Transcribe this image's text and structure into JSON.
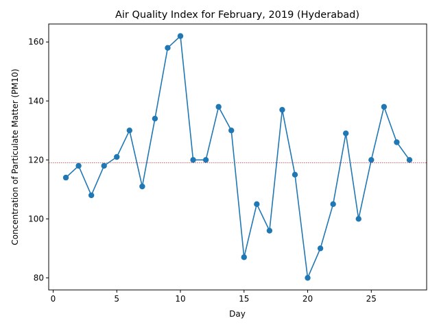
{
  "chart_data": {
    "type": "line",
    "title": "Air Quality Index for February, 2019 (Hyderabad)",
    "xlabel": "Day",
    "ylabel": "Concentration of Particulate Matter (PM10)",
    "xlim": [
      -0.35,
      29.35
    ],
    "ylim": [
      75.9,
      166.1
    ],
    "xticks": [
      0,
      5,
      10,
      15,
      20,
      25
    ],
    "yticks": [
      80,
      100,
      120,
      140,
      160
    ],
    "grid": false,
    "series": [
      {
        "color": "#1f77b4",
        "marker": "circle",
        "x": [
          1,
          2,
          3,
          4,
          5,
          6,
          7,
          8,
          9,
          10,
          11,
          12,
          13,
          14,
          15,
          16,
          17,
          18,
          19,
          20,
          21,
          22,
          23,
          24,
          25,
          26,
          27,
          28
        ],
        "y": [
          114,
          118,
          108,
          118,
          121,
          130,
          111,
          134,
          158,
          162,
          120,
          120,
          138,
          130,
          87,
          105,
          96,
          137,
          115,
          80,
          90,
          105,
          129,
          100,
          120,
          138,
          126,
          120
        ]
      }
    ],
    "reference_line": {
      "y": 119,
      "color": "#d62728",
      "style": "dotted"
    }
  }
}
